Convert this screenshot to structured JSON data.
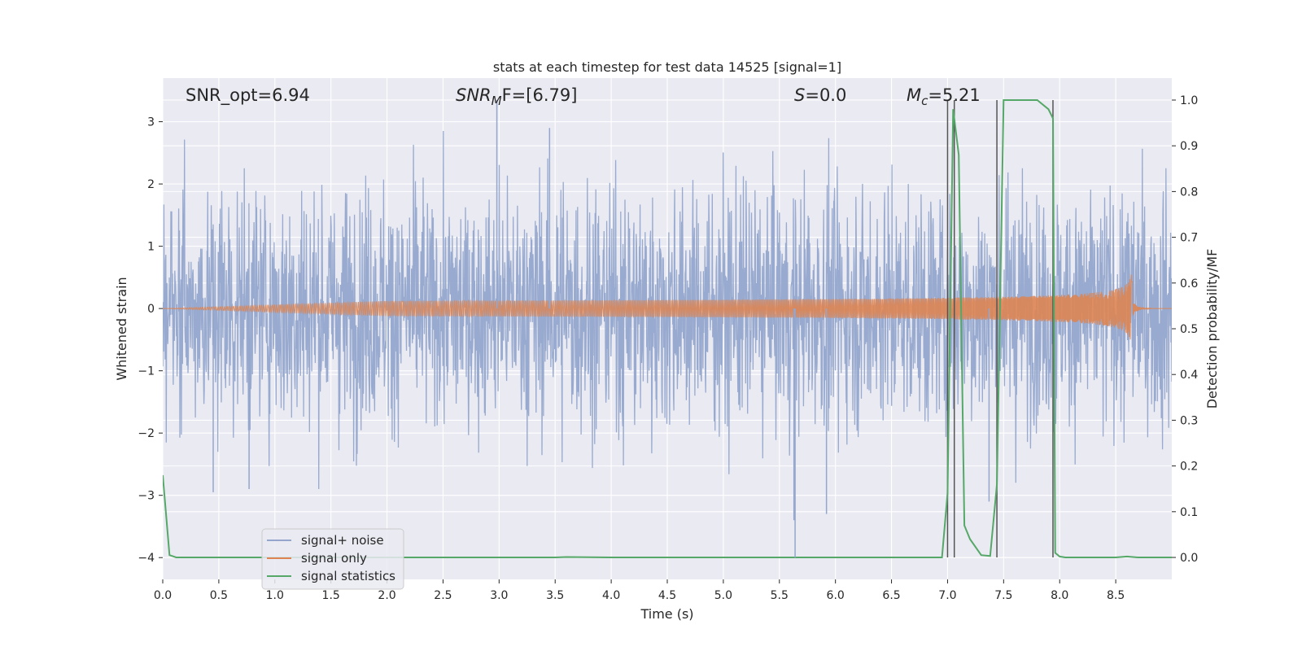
{
  "chart_data": {
    "type": "line",
    "title": "stats at each timestep for test data 14525 [signal=1]",
    "xlabel": "Time (s)",
    "ylabel": "Whitened strain",
    "ylabel_right": "Detection probability/MF",
    "xlim": [
      0,
      9
    ],
    "ylim": [
      -4.35,
      3.7
    ],
    "ylim_right": [
      -0.048,
      1.048
    ],
    "xticks": [
      0.0,
      0.5,
      1.0,
      1.5,
      2.0,
      2.5,
      3.0,
      3.5,
      4.0,
      4.5,
      5.0,
      5.5,
      6.0,
      6.5,
      7.0,
      7.5,
      8.0,
      8.5
    ],
    "xtick_labels": [
      "0.0",
      "0.5",
      "1.0",
      "1.5",
      "2.0",
      "2.5",
      "3.0",
      "3.5",
      "4.0",
      "4.5",
      "5.0",
      "5.5",
      "6.0",
      "6.5",
      "7.0",
      "7.5",
      "8.0",
      "8.5"
    ],
    "yticks": [
      3,
      2,
      1,
      0,
      -1,
      -2,
      -3,
      -4
    ],
    "ytick_labels": [
      "3",
      "2",
      "1",
      "0",
      "−1",
      "−2",
      "−3",
      "−4"
    ],
    "yticks_right": [
      1.0,
      0.9,
      0.8,
      0.7,
      0.6,
      0.5,
      0.4,
      0.3,
      0.2,
      0.1,
      0.0
    ],
    "ytick_labels_right": [
      "1.0",
      "0.9",
      "0.8",
      "0.7",
      "0.6",
      "0.5",
      "0.4",
      "0.3",
      "0.2",
      "0.1",
      "0.0"
    ],
    "grid": true,
    "legend_placement": "lower-left",
    "annotations": {
      "snr_opt": "SNR_opt=6.94",
      "snr_mf_main": "SNR",
      "snr_mf_sub": "M",
      "snr_mf_rest": "F=[6.79]",
      "s_main": "S",
      "s_rest": "=0.0",
      "mc_main": "M",
      "mc_sub": "c",
      "mc_rest": "=5.21"
    },
    "vlines_x": [
      7.0,
      7.06,
      7.44,
      7.94
    ],
    "series": [
      {
        "name": "signal+ noise",
        "color": "#94a6cc",
        "noise_std": 0.95,
        "outliers": [
          [
            2.98,
            3.35
          ],
          [
            5.64,
            -4.0
          ],
          [
            5.63,
            -3.4
          ],
          [
            5.92,
            -3.3
          ],
          [
            0.45,
            -2.95
          ],
          [
            0.77,
            -2.9
          ],
          [
            3.45,
            2.9
          ],
          [
            7.37,
            -3.1
          ]
        ]
      },
      {
        "name": "signal only",
        "color": "#dd8452",
        "chirp_end_time": 8.65,
        "peak_amplitude": 0.62
      },
      {
        "name": "signal statistics",
        "color": "#55a868",
        "axis": "right",
        "x": [
          0.0,
          0.06,
          0.12,
          0.2,
          1.0,
          2.0,
          3.0,
          3.5,
          3.6,
          4.0,
          5.0,
          6.0,
          6.95,
          7.0,
          7.05,
          7.1,
          7.15,
          7.2,
          7.3,
          7.38,
          7.44,
          7.5,
          7.55,
          7.6,
          7.7,
          7.8,
          7.9,
          7.94,
          7.96,
          8.0,
          8.05,
          8.2,
          8.5,
          8.6,
          8.7,
          9.0
        ],
        "y": [
          0.18,
          0.005,
          0.0,
          0.0,
          0.0,
          0.0,
          0.0,
          0.0,
          0.001,
          0.0,
          0.0,
          0.0,
          0.0,
          0.14,
          0.98,
          0.88,
          0.07,
          0.04,
          0.005,
          0.003,
          0.16,
          1.0,
          1.0,
          1.0,
          1.0,
          1.0,
          0.98,
          0.96,
          0.01,
          0.002,
          0.0,
          0.0,
          0.0,
          0.002,
          0.0,
          0.0
        ]
      }
    ]
  }
}
